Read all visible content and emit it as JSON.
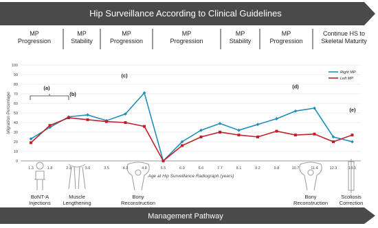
{
  "banner": "Hip Surveillance According to Clinical Guidelines",
  "phases": [
    [
      "MP",
      "Progression"
    ],
    [
      "MP",
      "Stability"
    ],
    [
      "MP",
      "Progression"
    ],
    [
      "MP",
      "Progression"
    ],
    [
      "MP",
      "Stability"
    ],
    [
      "MP",
      "Progression"
    ],
    [
      "Continue HS to",
      "Skeletal Maturity"
    ]
  ],
  "chart_data": {
    "type": "line",
    "x_label": "Age at Hip Surveillance Radiograph (years)",
    "y_label": "Migration Percentage",
    "categories": [
      "1.3",
      "1.8",
      "2.3",
      "3.0",
      "3.5",
      "4.3",
      "4.8",
      "5.5",
      "6.0",
      "6.6",
      "7.7",
      "8.1",
      "9.2",
      "9.8",
      "10.7",
      "11.4",
      "12.3",
      "13.3"
    ],
    "series": [
      {
        "name": "Right MP",
        "color": "#1f8fb8",
        "values": [
          23,
          35,
          46,
          48,
          42,
          49,
          71,
          0,
          20,
          32,
          39,
          32,
          38,
          44,
          52,
          55,
          25,
          20
        ]
      },
      {
        "name": "Left MP",
        "color": "#c0202a",
        "values": [
          19,
          37,
          45,
          43,
          41,
          40,
          36,
          0,
          16,
          25,
          30,
          27,
          25,
          31,
          27,
          28,
          20,
          27
        ]
      }
    ],
    "ylim": [
      0,
      100
    ],
    "yticks": [
      0,
      10,
      20,
      30,
      40,
      50,
      60,
      70,
      80,
      90,
      100
    ],
    "grid": true,
    "legend": "upper-right",
    "annotations": [
      "(a)",
      "(b)",
      "(c)",
      "(d)",
      "(e)"
    ]
  },
  "management": [
    [
      "BoNT-A",
      "Injections"
    ],
    [
      "Muscle",
      "Lengthening"
    ],
    [
      "Bony",
      "Reconstruction"
    ],
    [
      "Bony",
      "Reconstruction"
    ],
    [
      "Scoliosis",
      "Correction"
    ]
  ],
  "footer": "Management Pathway"
}
